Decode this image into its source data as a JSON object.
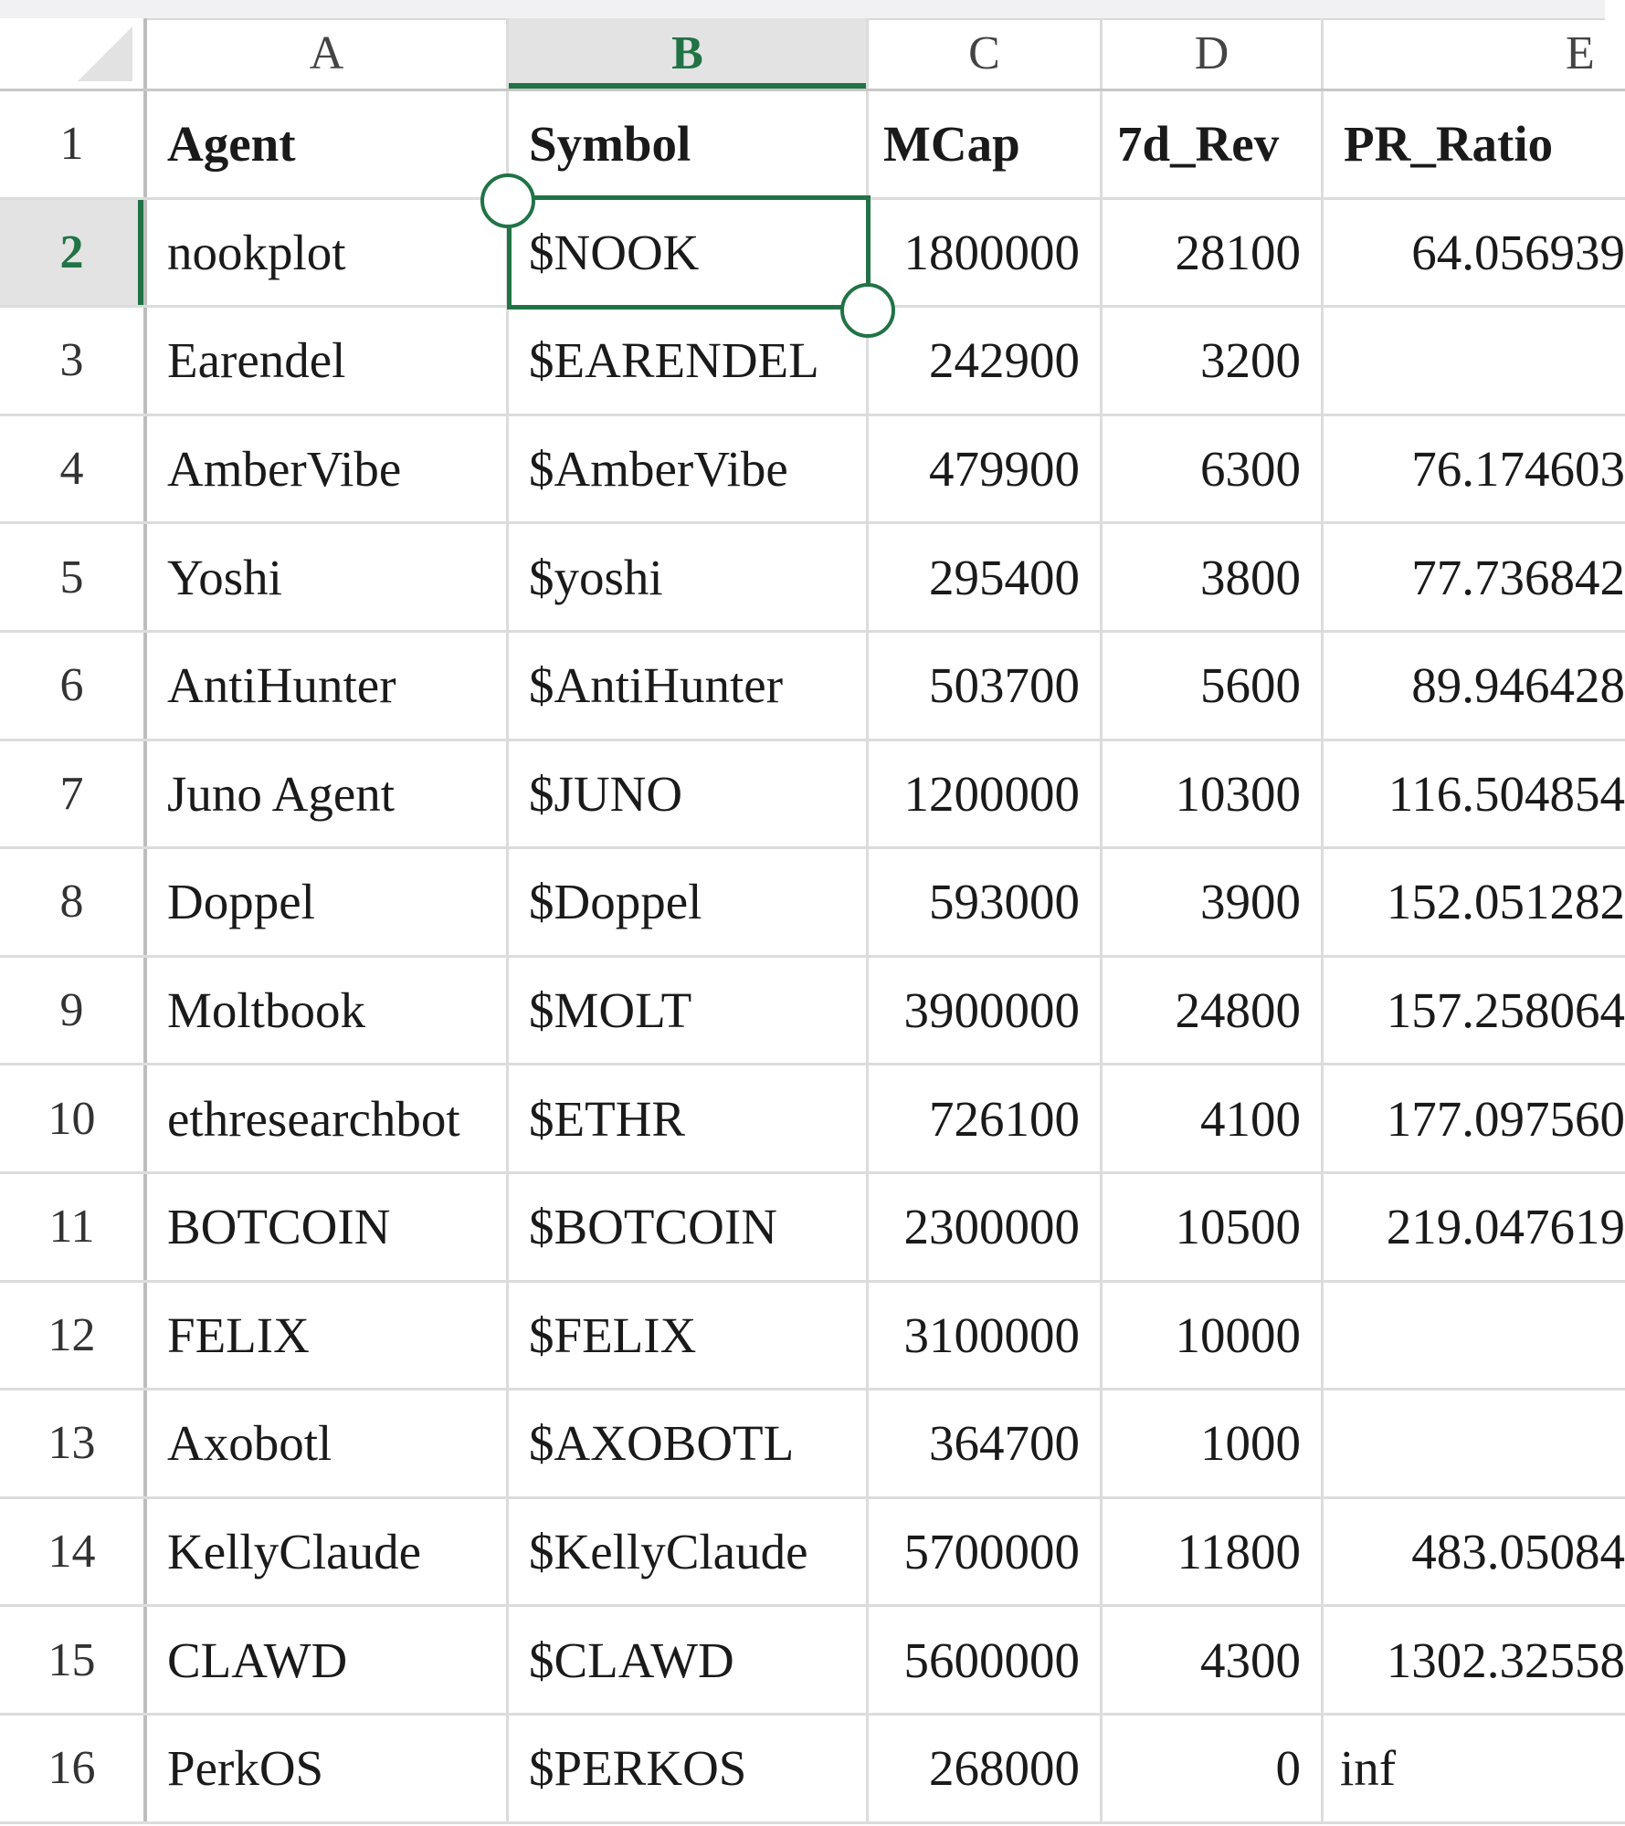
{
  "columns": [
    "A",
    "B",
    "C",
    "D",
    "E"
  ],
  "selected_cell": "B2",
  "accent_color": "#217346",
  "headers": [
    "Agent",
    "Symbol",
    "MCap",
    "7d_Rev",
    "PR_Ratio"
  ],
  "rows": [
    {
      "num": "2",
      "agent": "nookplot",
      "symbol": "$NOOK",
      "mcap": "1800000",
      "rev": "28100",
      "pr": "64.056939"
    },
    {
      "num": "3",
      "agent": "Earendel",
      "symbol": "$EARENDEL",
      "mcap": "242900",
      "rev": "3200",
      "pr": ""
    },
    {
      "num": "4",
      "agent": "AmberVibe",
      "symbol": "$AmberVibe",
      "mcap": "479900",
      "rev": "6300",
      "pr": "76.174603"
    },
    {
      "num": "5",
      "agent": "Yoshi",
      "symbol": "$yoshi",
      "mcap": "295400",
      "rev": "3800",
      "pr": "77.736842"
    },
    {
      "num": "6",
      "agent": "AntiHunter",
      "symbol": "$AntiHunter",
      "mcap": "503700",
      "rev": "5600",
      "pr": "89.946428"
    },
    {
      "num": "7",
      "agent": "Juno Agent",
      "symbol": "$JUNO",
      "mcap": "1200000",
      "rev": "10300",
      "pr": "116.504854"
    },
    {
      "num": "8",
      "agent": "Doppel",
      "symbol": "$Doppel",
      "mcap": "593000",
      "rev": "3900",
      "pr": "152.051282"
    },
    {
      "num": "9",
      "agent": "Moltbook",
      "symbol": "$MOLT",
      "mcap": "3900000",
      "rev": "24800",
      "pr": "157.258064"
    },
    {
      "num": "10",
      "agent": "ethresearchbot",
      "symbol": "$ETHR",
      "mcap": "726100",
      "rev": "4100",
      "pr": "177.097560"
    },
    {
      "num": "11",
      "agent": "BOTCOIN",
      "symbol": "$BOTCOIN",
      "mcap": "2300000",
      "rev": "10500",
      "pr": "219.047619"
    },
    {
      "num": "12",
      "agent": "FELIX",
      "symbol": "$FELIX",
      "mcap": "3100000",
      "rev": "10000",
      "pr": ""
    },
    {
      "num": "13",
      "agent": "Axobotl",
      "symbol": "$AXOBOTL",
      "mcap": "364700",
      "rev": "1000",
      "pr": ""
    },
    {
      "num": "14",
      "agent": "KellyClaude",
      "symbol": "$KellyClaude",
      "mcap": "5700000",
      "rev": "11800",
      "pr": "483.05084"
    },
    {
      "num": "15",
      "agent": "CLAWD",
      "symbol": "$CLAWD",
      "mcap": "5600000",
      "rev": "4300",
      "pr": "1302.32558"
    },
    {
      "num": "16",
      "agent": "PerkOS",
      "symbol": "$PERKOS",
      "mcap": "268000",
      "rev": "0",
      "pr": "inf"
    }
  ]
}
